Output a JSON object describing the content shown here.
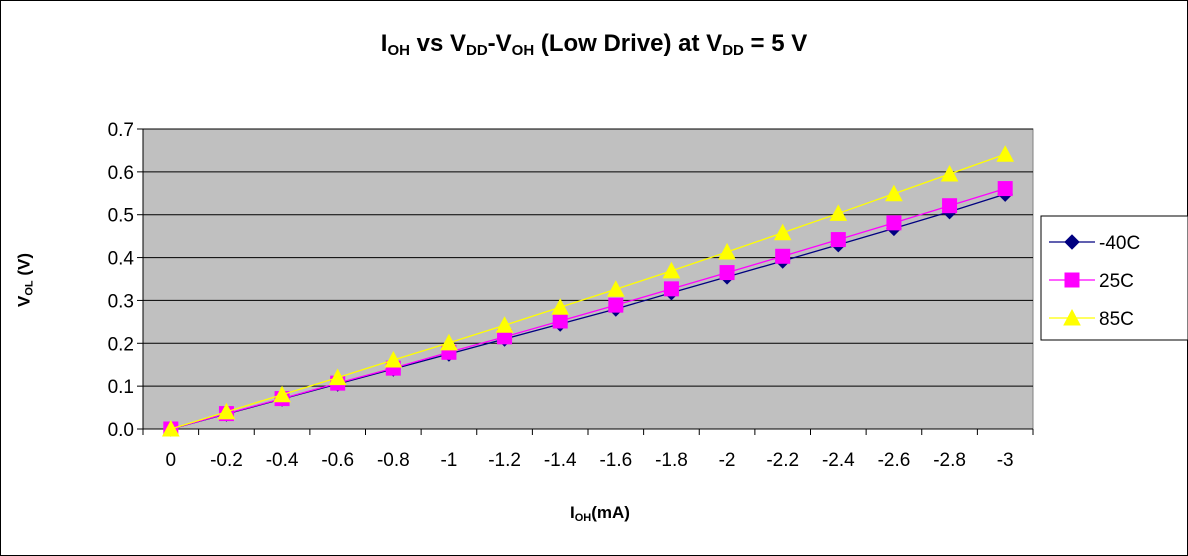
{
  "chart_data": {
    "type": "line",
    "title": {
      "main": "I",
      "main_sub": "OH",
      "mid": " vs V",
      "mid_sub": "DD",
      "mid2": "-V",
      "mid2_sub": "OH",
      "tail": " (Low Drive) at V",
      "tail_sub": "DD",
      "end": " = 5 V"
    },
    "xlabel": {
      "main": "I",
      "sub": "OH",
      "tail": "(mA)"
    },
    "ylabel": {
      "main": "V",
      "sub": "OL",
      "tail": " (V)"
    },
    "categories": [
      "0",
      "-0.2",
      "-0.4",
      "-0.6",
      "-0.8",
      "-1",
      "-1.2",
      "-1.4",
      "-1.6",
      "-1.8",
      "-2",
      "-2.2",
      "-2.4",
      "-2.6",
      "-2.8",
      "-3"
    ],
    "yticks": [
      "0.0",
      "0.1",
      "0.2",
      "0.3",
      "0.4",
      "0.5",
      "0.6",
      "0.7"
    ],
    "ylim": [
      0,
      0.7
    ],
    "grid": true,
    "plot_background": "#c0c0c0",
    "legend_position": "right",
    "series": [
      {
        "name": "-40C",
        "color": "#000080",
        "marker": "diamond",
        "values": [
          0.0,
          0.035,
          0.07,
          0.105,
          0.14,
          0.175,
          0.21,
          0.245,
          0.28,
          0.318,
          0.355,
          0.392,
          0.43,
          0.468,
          0.507,
          0.548
        ]
      },
      {
        "name": "25C",
        "color": "#ff00ff",
        "marker": "square",
        "values": [
          0.0,
          0.036,
          0.071,
          0.107,
          0.142,
          0.179,
          0.215,
          0.252,
          0.289,
          0.327,
          0.365,
          0.403,
          0.442,
          0.481,
          0.521,
          0.561
        ]
      },
      {
        "name": "85C",
        "color": "#ffff00",
        "marker": "triangle",
        "values": [
          0.0,
          0.04,
          0.08,
          0.12,
          0.161,
          0.201,
          0.242,
          0.284,
          0.326,
          0.369,
          0.413,
          0.458,
          0.503,
          0.549,
          0.595,
          0.641
        ]
      }
    ]
  }
}
